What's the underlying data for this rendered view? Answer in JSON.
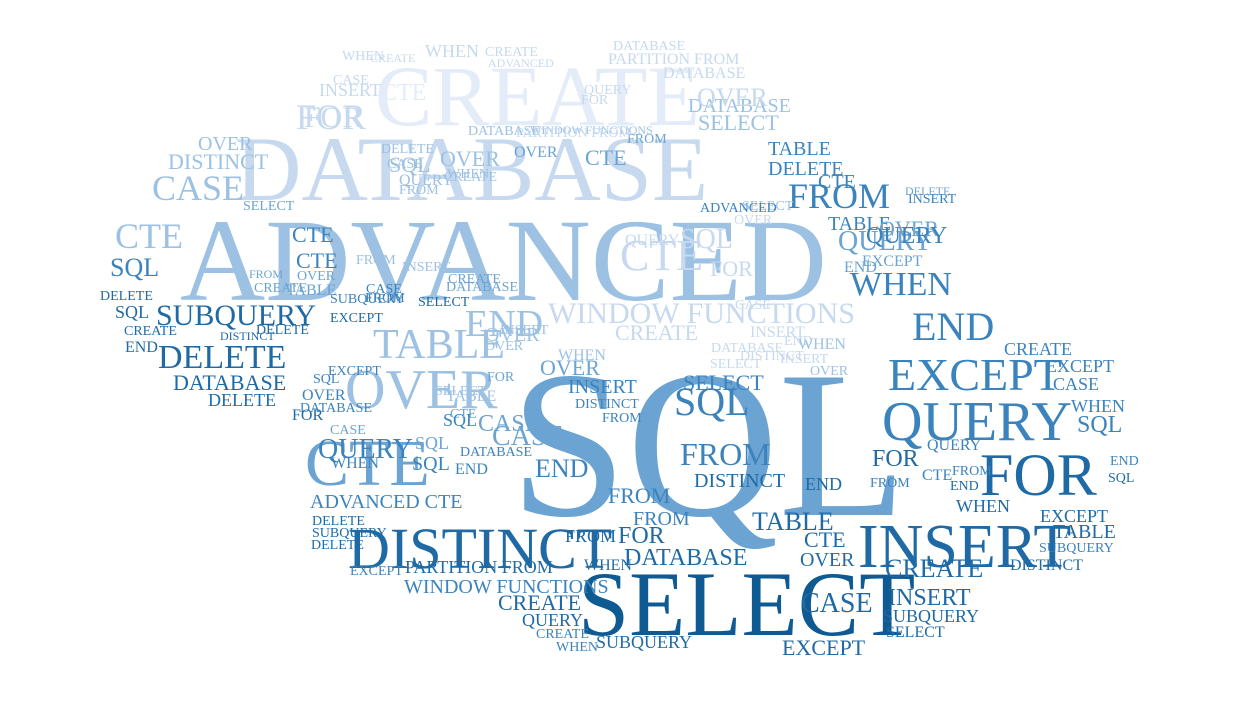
{
  "words": [
    {
      "text": "SQL",
      "weight": 1.0,
      "tone": 0.45
    },
    {
      "text": "ADVANCED",
      "weight": 0.72,
      "tone": 0.3
    },
    {
      "text": "DATABASE",
      "weight": 0.62,
      "tone": 0.2
    },
    {
      "text": "CREATE",
      "weight": 0.55,
      "tone": 0.05
    },
    {
      "text": "SELECT",
      "weight": 0.52,
      "tone": 0.9
    },
    {
      "text": "DISTINCT",
      "weight": 0.42,
      "tone": 0.85
    },
    {
      "text": "INSERT",
      "weight": 0.4,
      "tone": 0.85
    },
    {
      "text": "QUERY",
      "weight": 0.38,
      "tone": 0.7
    },
    {
      "text": "FOR",
      "weight": 0.36,
      "tone": 0.7
    },
    {
      "text": "CTE",
      "weight": 0.34,
      "tone": 0.5
    },
    {
      "text": "OVER",
      "weight": 0.32,
      "tone": 0.3
    },
    {
      "text": "EXCEPT",
      "weight": 0.3,
      "tone": 0.6
    },
    {
      "text": "DELETE",
      "weight": 0.24,
      "tone": 0.9
    },
    {
      "text": "TABLE",
      "weight": 0.26,
      "tone": 0.25
    },
    {
      "text": "SUBQUERY",
      "weight": 0.2,
      "tone": 0.9
    },
    {
      "text": "WINDOW FUNCTIONS",
      "weight": 0.18,
      "tone": 0.2
    },
    {
      "text": "CASE",
      "weight": 0.22,
      "tone": 0.35
    },
    {
      "text": "FROM",
      "weight": 0.2,
      "tone": 0.7
    },
    {
      "text": "END",
      "weight": 0.2,
      "tone": 0.55
    },
    {
      "text": "WHEN",
      "weight": 0.18,
      "tone": 0.6
    },
    {
      "text": "PARTITION FROM",
      "weight": 0.12,
      "tone": 0.8
    },
    {
      "text": "ADVANCED CTE",
      "weight": 0.16,
      "tone": 0.7
    }
  ],
  "palette": [
    "#e3ecf8",
    "#c6d9ef",
    "#9cc1e3",
    "#6ba4d2",
    "#3b83bd",
    "#1f6aa5",
    "#0f5a92"
  ]
}
